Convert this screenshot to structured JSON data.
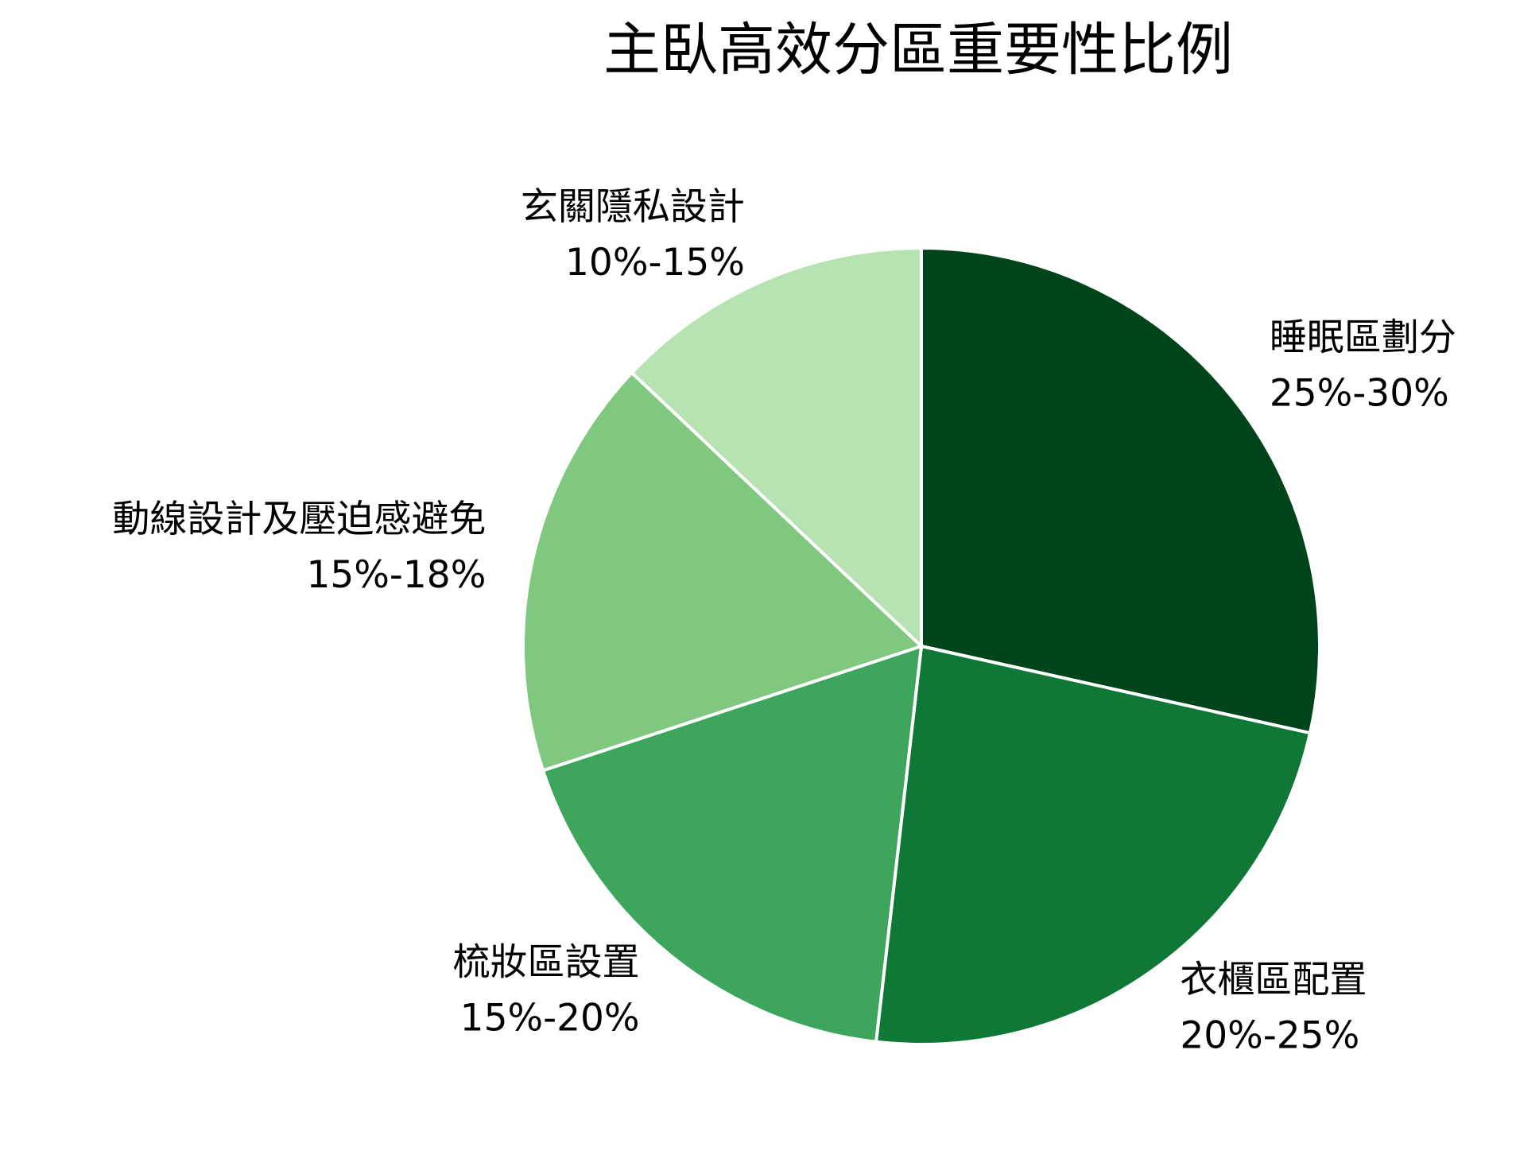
{
  "chart_data": {
    "type": "pie",
    "title": "主臥高效分區重要性比例",
    "categories": [
      "睡眠區劃分",
      "衣櫃區配置",
      "梳妝區設置",
      "動線設計及壓迫感避免",
      "玄關隱私設計"
    ],
    "values": [
      27.5,
      22.5,
      17.5,
      16.5,
      12.5
    ],
    "value_labels": [
      "25%-30%",
      "20%-25%",
      "15%-20%",
      "15%-18%",
      "10%-15%"
    ],
    "colors": [
      "#00441b",
      "#0f7836",
      "#3da65c",
      "#80c780",
      "#b7e3b2"
    ],
    "start_angle": 90,
    "direction": "clockwise"
  }
}
